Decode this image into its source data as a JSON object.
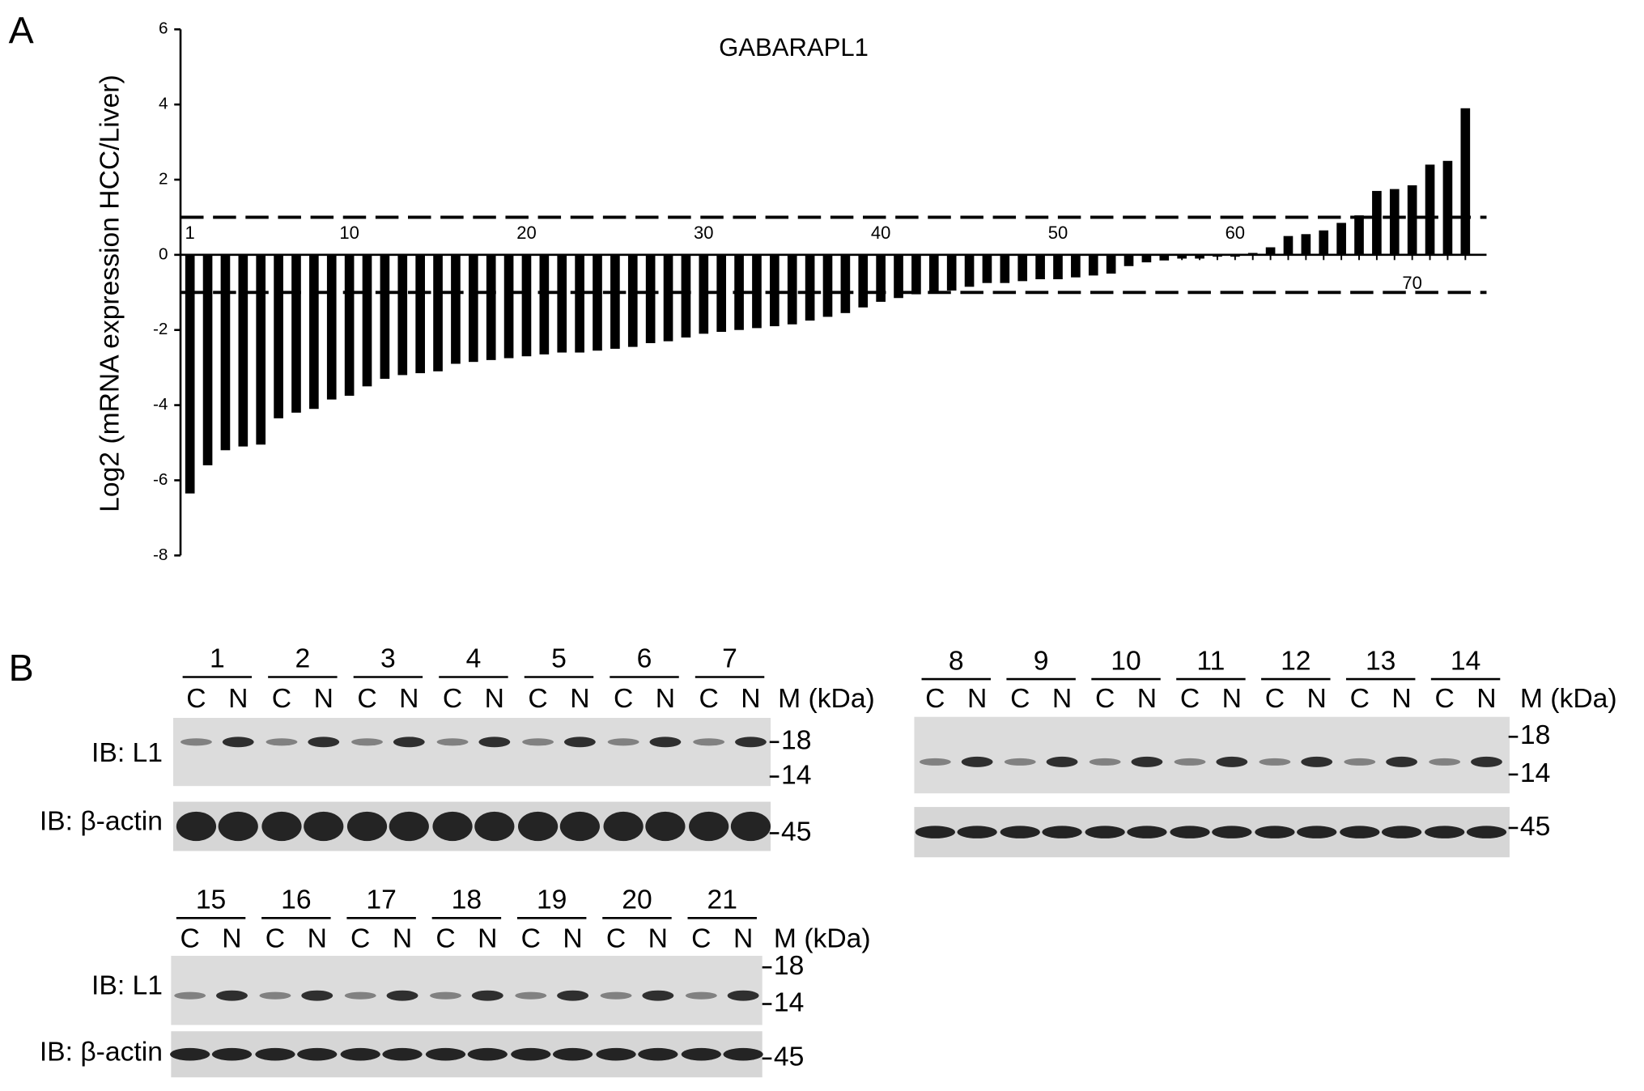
{
  "chart_data": {
    "type": "bar",
    "panel_label": "A",
    "title": "GABARAPL1",
    "ylabel": "Log2 (mRNA expression HCC/Liver)",
    "categories": [
      "1",
      null,
      null,
      null,
      null,
      null,
      null,
      null,
      null,
      "10",
      null,
      null,
      null,
      null,
      null,
      null,
      null,
      null,
      null,
      "20",
      null,
      null,
      null,
      null,
      null,
      null,
      null,
      null,
      null,
      "30",
      null,
      null,
      null,
      null,
      null,
      null,
      null,
      null,
      null,
      "40",
      null,
      null,
      null,
      null,
      null,
      null,
      null,
      null,
      null,
      "50",
      null,
      null,
      null,
      null,
      null,
      null,
      null,
      null,
      null,
      "60",
      null,
      null,
      null,
      null,
      null,
      null,
      null,
      null,
      null,
      "70",
      null,
      null,
      null
    ],
    "values": [
      -6.35,
      -5.6,
      -5.2,
      -5.1,
      -5.05,
      -4.35,
      -4.2,
      -4.1,
      -3.85,
      -3.75,
      -3.5,
      -3.3,
      -3.2,
      -3.15,
      -3.1,
      -2.9,
      -2.85,
      -2.8,
      -2.75,
      -2.7,
      -2.65,
      -2.6,
      -2.6,
      -2.55,
      -2.5,
      -2.45,
      -2.35,
      -2.3,
      -2.2,
      -2.1,
      -2.05,
      -2.0,
      -1.95,
      -1.9,
      -1.85,
      -1.75,
      -1.65,
      -1.55,
      -1.4,
      -1.25,
      -1.15,
      -1.05,
      -1.0,
      -0.95,
      -0.85,
      -0.75,
      -0.75,
      -0.7,
      -0.65,
      -0.65,
      -0.6,
      -0.55,
      -0.5,
      -0.3,
      -0.2,
      -0.15,
      -0.1,
      -0.1,
      -0.05,
      -0.05,
      0.05,
      0.2,
      0.5,
      0.55,
      0.65,
      0.85,
      1.05,
      1.7,
      1.75,
      1.85,
      2.4,
      2.5,
      3.9
    ],
    "color": "#000000",
    "ylim": [
      -8,
      6
    ],
    "yticks": [
      -8,
      -6,
      -4,
      -2,
      0,
      2,
      4,
      6
    ],
    "hlines": [
      1,
      -1
    ]
  },
  "panel_b": {
    "label": "B",
    "marker_unit": "M (kDa)",
    "lane_labels": [
      "C",
      "N"
    ],
    "blots": [
      {
        "samples": [
          "1",
          "2",
          "3",
          "4",
          "5",
          "6",
          "7"
        ],
        "rows": [
          "IB: L1",
          "IB: β-actin"
        ],
        "markers": [
          "18",
          "14",
          "45"
        ]
      },
      {
        "samples": [
          "8",
          "9",
          "10",
          "11",
          "12",
          "13",
          "14"
        ],
        "markers": [
          "18",
          "14",
          "45"
        ]
      },
      {
        "samples": [
          "15",
          "16",
          "17",
          "18",
          "19",
          "20",
          "21"
        ],
        "rows": [
          "IB: L1",
          "IB: β-actin"
        ],
        "markers": [
          "18",
          "14",
          "45"
        ]
      }
    ]
  }
}
